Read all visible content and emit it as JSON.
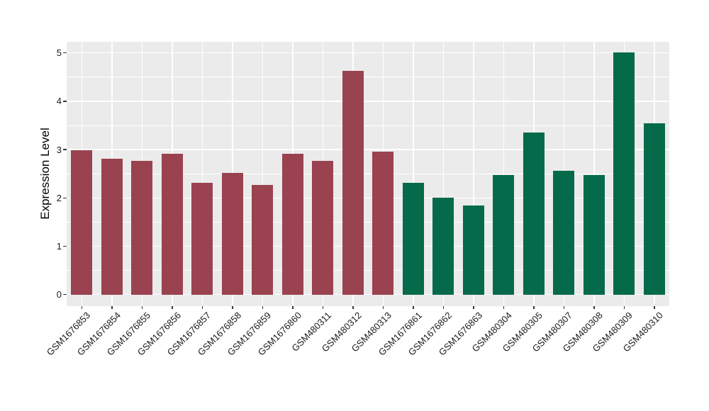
{
  "chart_data": {
    "type": "bar",
    "title": "",
    "xlabel": "",
    "ylabel": "Expression Level",
    "categories": [
      "GSM1676853",
      "GSM1676854",
      "GSM1676855",
      "GSM1676856",
      "GSM1676857",
      "GSM1676858",
      "GSM1676859",
      "GSM1676860",
      "GSM480311",
      "GSM480312",
      "GSM480313",
      "GSM1676861",
      "GSM1676862",
      "GSM1676863",
      "GSM480304",
      "GSM480305",
      "GSM480307",
      "GSM480308",
      "GSM480309",
      "GSM480310"
    ],
    "values": [
      2.99,
      2.81,
      2.76,
      2.91,
      2.31,
      2.51,
      2.27,
      2.91,
      2.76,
      4.63,
      2.95,
      2.31,
      2.01,
      1.84,
      2.47,
      3.35,
      2.56,
      2.47,
      5.01,
      3.55
    ],
    "group_split_index": 11,
    "group_colors": [
      "#9A4250",
      "#046A4A"
    ],
    "yticks": [
      0,
      1,
      2,
      3,
      4,
      5
    ],
    "minor_gridlines": [
      0.5,
      1.5,
      2.5,
      3.5,
      4.5
    ],
    "ylim": [
      -0.24,
      5.23
    ],
    "bar_width_fraction": 0.7,
    "panel_background": "#EBEBEB",
    "gridline_color": "#FFFFFF",
    "legend": "none",
    "grid": "on"
  }
}
